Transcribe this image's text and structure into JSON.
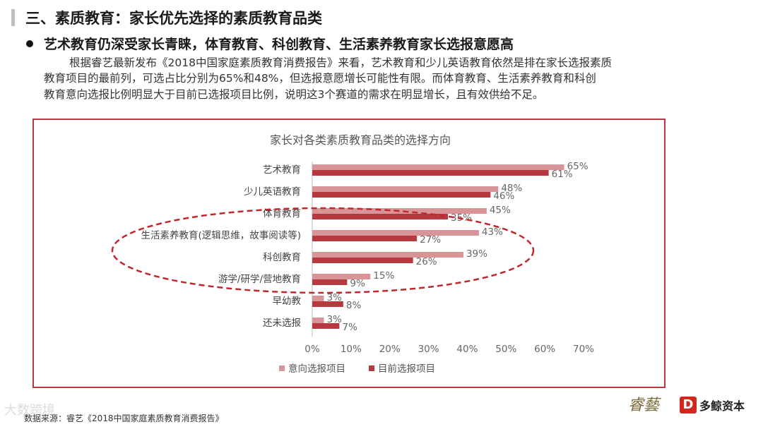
{
  "header": {
    "title": "三、素质教育：家长优先选择的素质教育品类",
    "bullet": "艺术教育仍深受家长青睐，体育教育、科创教育、生活素养教育家长选报意愿高",
    "paragraph": [
      "根据睿艺最新发布《2018中国家庭素质教育消费报告》来看，艺术教育和少儿英语教育依然是排在家长选报素质",
      "教育项目的最前列，可选占比分别为65%和48%，但选报意愿增长可能性有限。而体育教育、生活素养教育和科创",
      "教育意向选报比例明显大于目前已选报项目比例，说明这3个赛道的需求在明显增长，且有效供给不足。"
    ]
  },
  "chart_data": {
    "type": "bar",
    "orientation": "horizontal",
    "title": "家长对各类素质教育品类的选择方向",
    "categories": [
      "艺术教育",
      "少儿英语教育",
      "体育教育",
      "生活素养教育(逻辑思维，故事阅读等)",
      "科创教育",
      "游学/研学/营地教育",
      "早幼教",
      "还未选报"
    ],
    "series": [
      {
        "name": "意向选报项目",
        "color": "#d99498",
        "values": [
          65,
          48,
          45,
          43,
          39,
          15,
          3,
          3
        ],
        "labels": [
          "65%",
          "48%",
          "45%",
          "43%",
          "39%",
          "15%",
          "3%",
          "3%"
        ]
      },
      {
        "name": "目前选报项目",
        "color": "#b5393f",
        "values": [
          61,
          46,
          35,
          27,
          26,
          9,
          8,
          7
        ],
        "labels": [
          "61%",
          "46%",
          "35%",
          "27%",
          "26%",
          "9%",
          "8%",
          "7%"
        ]
      }
    ],
    "xlim": [
      0,
      70
    ],
    "ticks": [
      "0%",
      "10%",
      "20%",
      "30%",
      "40%",
      "50%",
      "60%",
      "70%"
    ],
    "legend_position": "bottom",
    "grid": false,
    "highlight_ellipse_color": "#c0282e"
  },
  "footer": {
    "source": "数据来源：睿艺《2018中国家庭素质教育消费报告》",
    "watermark": "大数跨境",
    "logo_ruiyi": "睿藝",
    "logo_mark": "D",
    "logo_text": "多鲸资本"
  }
}
